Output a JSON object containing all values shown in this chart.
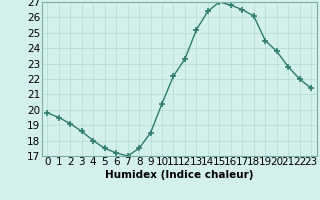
{
  "title": "",
  "xlabel": "Humidex (Indice chaleur)",
  "ylabel": "",
  "x_values": [
    0,
    1,
    2,
    3,
    4,
    5,
    6,
    7,
    8,
    9,
    10,
    11,
    12,
    13,
    14,
    15,
    16,
    17,
    18,
    19,
    20,
    21,
    22,
    23
  ],
  "y_values": [
    19.8,
    19.5,
    19.1,
    18.6,
    18.0,
    17.5,
    17.2,
    17.0,
    17.5,
    18.5,
    20.4,
    22.2,
    23.3,
    25.2,
    26.4,
    27.0,
    26.8,
    26.5,
    26.1,
    24.5,
    23.8,
    22.8,
    22.0,
    21.4
  ],
  "ylim": [
    17,
    27
  ],
  "yticks": [
    17,
    18,
    19,
    20,
    21,
    22,
    23,
    24,
    25,
    26,
    27
  ],
  "xticks": [
    0,
    1,
    2,
    3,
    4,
    5,
    6,
    7,
    8,
    9,
    10,
    11,
    12,
    13,
    14,
    15,
    16,
    17,
    18,
    19,
    20,
    21,
    22,
    23
  ],
  "line_color": "#2e7d6e",
  "marker_color": "#2e7d6e",
  "bg_color": "#d4f0eb",
  "grid_color": "#b8ddd8",
  "axis_fontsize": 7.5,
  "tick_fontsize": 7.5
}
